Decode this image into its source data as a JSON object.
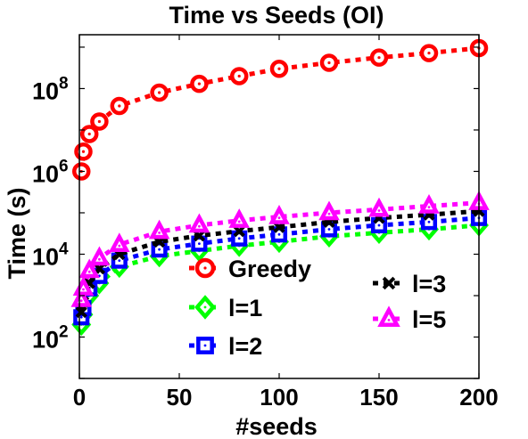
{
  "chart_data": {
    "type": "line",
    "title": "Time vs Seeds (OI)",
    "xlabel": "#seeds",
    "ylabel": "Time (s)",
    "xlim": [
      0,
      200
    ],
    "ylim_log10": [
      1,
      9.3
    ],
    "yscale": "log",
    "grid": false,
    "x_ticks": [
      "0",
      "50",
      "100",
      "150",
      "200"
    ],
    "x_tick_values": [
      0,
      50,
      100,
      150,
      200
    ],
    "y_ticks": [
      {
        "base": "10",
        "exp": "2",
        "log": 2
      },
      {
        "base": "10",
        "exp": "4",
        "log": 4
      },
      {
        "base": "10",
        "exp": "6",
        "log": 6
      },
      {
        "base": "10",
        "exp": "8",
        "log": 8
      }
    ],
    "x": [
      1,
      2,
      5,
      10,
      20,
      40,
      60,
      80,
      100,
      125,
      150,
      175,
      200
    ],
    "series": [
      {
        "name": "Greedy",
        "color": "#ff0000",
        "marker": "circle",
        "values": [
          1000000,
          3000000,
          8000000,
          16000000,
          38000000,
          80000000,
          130000000,
          200000000,
          300000000,
          420000000,
          560000000,
          720000000,
          950000000
        ]
      },
      {
        "name": "l=1",
        "color": "#00ff00",
        "marker": "diamond",
        "values": [
          200,
          350,
          1000,
          2000,
          5000,
          9000,
          12000,
          16000,
          20000,
          27000,
          33000,
          40000,
          50000
        ]
      },
      {
        "name": "l=2",
        "color": "#0000ff",
        "marker": "square",
        "values": [
          300,
          500,
          1500,
          3000,
          7000,
          13000,
          18000,
          24000,
          30000,
          40000,
          50000,
          60000,
          75000
        ]
      },
      {
        "name": "l=3",
        "color": "#000000",
        "marker": "x",
        "values": [
          400,
          700,
          2000,
          4500,
          10000,
          20000,
          28000,
          36000,
          45000,
          60000,
          75000,
          90000,
          110000
        ]
      },
      {
        "name": "l=5",
        "color": "#ff00ff",
        "marker": "triangle",
        "values": [
          800,
          1500,
          4000,
          8000,
          17000,
          35000,
          50000,
          65000,
          80000,
          100000,
          120000,
          145000,
          175000
        ]
      }
    ],
    "legend": {
      "placement": "bottom-center"
    }
  }
}
